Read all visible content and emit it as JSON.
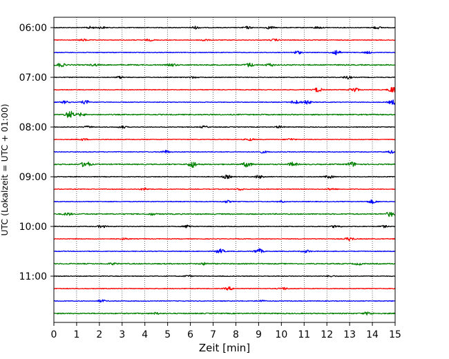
{
  "chart_data": {
    "type": "line",
    "xlabel": "Zeit  [min]",
    "ylabel": "UTC (Lokalzeit = UTC + 01:00)",
    "xlim": [
      0,
      15
    ],
    "x_ticks": [
      "0",
      "1",
      "2",
      "3",
      "4",
      "5",
      "6",
      "7",
      "8",
      "9",
      "10",
      "11",
      "12",
      "13",
      "14",
      "15"
    ],
    "y_ticks": [
      "06:00",
      "07:00",
      "08:00",
      "09:00",
      "10:00",
      "11:00"
    ],
    "trace_interval_min": 15,
    "vertical_grid": "dotted at every minute",
    "colors": [
      "#000000",
      "#ff0000",
      "#0000ff",
      "#008000"
    ],
    "series": [
      {
        "start": "06:00",
        "color": "#000000",
        "events": [
          [
            1.6,
            0.35
          ],
          [
            2.1,
            0.3
          ],
          [
            6.2,
            0.4
          ],
          [
            8.5,
            0.35
          ],
          [
            9.5,
            0.4
          ],
          [
            11.6,
            0.3
          ],
          [
            14.2,
            0.35
          ]
        ]
      },
      {
        "start": "06:15",
        "color": "#ff0000",
        "events": [
          [
            1.3,
            0.3
          ],
          [
            4.2,
            0.25
          ],
          [
            6.6,
            0.3
          ],
          [
            9.7,
            0.3
          ]
        ]
      },
      {
        "start": "06:30",
        "color": "#0000ff",
        "events": [
          [
            10.7,
            0.5
          ],
          [
            12.4,
            0.9
          ],
          [
            13.8,
            0.3
          ]
        ]
      },
      {
        "start": "06:45",
        "color": "#008000",
        "events": [
          [
            0.3,
            0.55
          ],
          [
            1.8,
            0.3
          ],
          [
            5.2,
            0.35
          ],
          [
            8.6,
            0.55
          ],
          [
            9.5,
            0.4
          ]
        ]
      },
      {
        "start": "07:00",
        "color": "#000000",
        "events": [
          [
            2.9,
            0.3
          ],
          [
            6.1,
            0.25
          ],
          [
            12.9,
            0.45
          ]
        ]
      },
      {
        "start": "07:15",
        "color": "#ff0000",
        "events": [
          [
            11.6,
            0.7
          ],
          [
            13.2,
            0.75
          ],
          [
            14.9,
            1.0
          ]
        ]
      },
      {
        "start": "07:30",
        "color": "#0000ff",
        "events": [
          [
            0.5,
            0.4
          ],
          [
            1.4,
            0.55
          ],
          [
            10.6,
            0.6
          ],
          [
            11.1,
            0.65
          ],
          [
            14.9,
            0.7
          ]
        ]
      },
      {
        "start": "07:45",
        "color": "#008000",
        "events": [
          [
            0.7,
            1.15
          ],
          [
            1.2,
            0.45
          ]
        ]
      },
      {
        "start": "08:00",
        "color": "#000000",
        "events": [
          [
            1.5,
            0.3
          ],
          [
            3.0,
            0.35
          ],
          [
            6.6,
            0.3
          ],
          [
            9.9,
            0.3
          ]
        ]
      },
      {
        "start": "08:15",
        "color": "#ff0000",
        "events": [
          [
            1.3,
            0.3
          ],
          [
            8.6,
            0.35
          ],
          [
            10.4,
            0.3
          ]
        ]
      },
      {
        "start": "08:30",
        "color": "#0000ff",
        "events": [
          [
            4.9,
            0.45
          ],
          [
            9.2,
            0.3
          ],
          [
            14.8,
            0.4
          ]
        ]
      },
      {
        "start": "08:45",
        "color": "#008000",
        "events": [
          [
            1.4,
            1.0
          ],
          [
            6.1,
            0.95
          ],
          [
            8.5,
            0.8
          ],
          [
            10.5,
            0.6
          ],
          [
            13.1,
            0.7
          ]
        ]
      },
      {
        "start": "09:00",
        "color": "#000000",
        "events": [
          [
            7.6,
            0.55
          ],
          [
            9.0,
            0.5
          ],
          [
            12.1,
            0.45
          ]
        ]
      },
      {
        "start": "09:15",
        "color": "#ff0000",
        "events": [
          [
            4.0,
            0.35
          ],
          [
            8.2,
            0.3
          ],
          [
            12.2,
            0.3
          ]
        ]
      },
      {
        "start": "09:30",
        "color": "#0000ff",
        "events": [
          [
            7.6,
            0.35
          ],
          [
            10.0,
            0.3
          ],
          [
            14.0,
            0.55
          ]
        ]
      },
      {
        "start": "09:45",
        "color": "#008000",
        "events": [
          [
            0.6,
            0.4
          ],
          [
            4.3,
            0.3
          ],
          [
            14.8,
            0.75
          ]
        ]
      },
      {
        "start": "10:00",
        "color": "#000000",
        "events": [
          [
            2.1,
            0.4
          ],
          [
            5.9,
            0.5
          ],
          [
            12.4,
            0.45
          ],
          [
            14.5,
            0.3
          ]
        ]
      },
      {
        "start": "10:15",
        "color": "#ff0000",
        "events": [
          [
            3.1,
            0.25
          ],
          [
            13.0,
            0.55
          ]
        ]
      },
      {
        "start": "10:30",
        "color": "#0000ff",
        "events": [
          [
            7.3,
            0.7
          ],
          [
            9.0,
            0.75
          ],
          [
            11.1,
            0.4
          ]
        ]
      },
      {
        "start": "10:45",
        "color": "#008000",
        "events": [
          [
            2.6,
            0.25
          ],
          [
            6.6,
            0.3
          ],
          [
            13.4,
            0.3
          ]
        ]
      },
      {
        "start": "11:00",
        "color": "#000000",
        "events": [
          [
            5.9,
            0.25
          ],
          [
            12.2,
            0.2
          ]
        ]
      },
      {
        "start": "11:15",
        "color": "#ff0000",
        "events": [
          [
            7.7,
            0.45
          ],
          [
            10.1,
            0.35
          ]
        ]
      },
      {
        "start": "11:30",
        "color": "#0000ff",
        "events": [
          [
            2.1,
            0.35
          ],
          [
            9.1,
            0.25
          ]
        ]
      },
      {
        "start": "11:45",
        "color": "#008000",
        "events": [
          [
            4.5,
            0.25
          ],
          [
            13.8,
            0.4
          ]
        ]
      }
    ]
  }
}
